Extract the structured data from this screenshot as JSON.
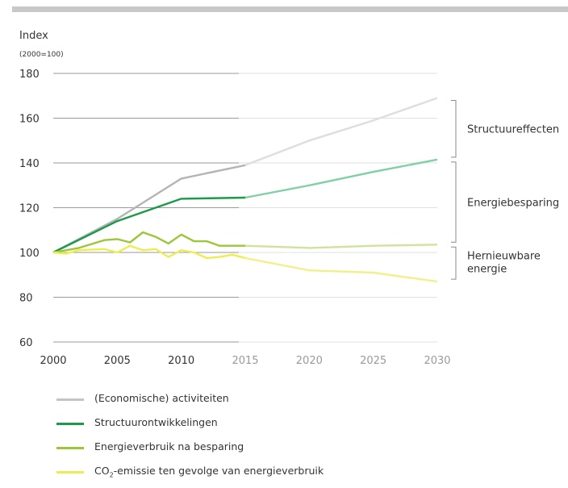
{
  "chart_data": {
    "type": "line",
    "ylabel": "Index",
    "ylabel_sub": "(2000=100)",
    "ylim": [
      60,
      180
    ],
    "yticks": [
      60,
      80,
      100,
      120,
      140,
      160,
      180
    ],
    "xlim": [
      2000,
      2030
    ],
    "xticks": [
      2000,
      2005,
      2010,
      2015,
      2020,
      2025,
      2030
    ],
    "grid": "horizontal",
    "series": [
      {
        "name": "(Economische) activiteiten",
        "color_hist": "#b4b4b4",
        "color_proj": "#dedede",
        "points": [
          [
            2000,
            100
          ],
          [
            2005,
            115
          ],
          [
            2010,
            133
          ],
          [
            2015,
            139
          ],
          [
            2020,
            150
          ],
          [
            2025,
            159
          ],
          [
            2030,
            169
          ]
        ]
      },
      {
        "name": "Structuurontwikkelingen",
        "color_hist": "#1b9a4a",
        "color_proj": "#7fd0a4",
        "points": [
          [
            2000,
            100
          ],
          [
            2005,
            114
          ],
          [
            2010,
            124
          ],
          [
            2015,
            124.5
          ],
          [
            2020,
            130
          ],
          [
            2025,
            136
          ],
          [
            2030,
            141.5
          ]
        ]
      },
      {
        "name": "Energieverbruik na besparing",
        "color_hist": "#9cc63a",
        "color_proj": "#cfe39a",
        "points": [
          [
            2000,
            100
          ],
          [
            2002,
            102
          ],
          [
            2004,
            105.5
          ],
          [
            2005,
            106
          ],
          [
            2006,
            104.5
          ],
          [
            2007,
            109
          ],
          [
            2008,
            107
          ],
          [
            2009,
            104
          ],
          [
            2010,
            108
          ],
          [
            2011,
            105
          ],
          [
            2012,
            105
          ],
          [
            2013,
            103
          ],
          [
            2014,
            103
          ],
          [
            2015,
            103
          ],
          [
            2020,
            102
          ],
          [
            2025,
            103
          ],
          [
            2030,
            103.5
          ]
        ]
      },
      {
        "name": "CO₂-emissie ten gevolge van energieverbruik",
        "name_parts": {
          "pre": "CO",
          "sub": "2",
          "post": "-emissie ten gevolge van energieverbruik"
        },
        "color_hist": "#eeed50",
        "color_proj": "#f3f08a",
        "points": [
          [
            2000,
            100
          ],
          [
            2001,
            99.5
          ],
          [
            2002,
            101
          ],
          [
            2004,
            101.5
          ],
          [
            2005,
            100
          ],
          [
            2006,
            103
          ],
          [
            2007,
            101
          ],
          [
            2008,
            101.5
          ],
          [
            2009,
            98
          ],
          [
            2010,
            101
          ],
          [
            2011,
            100
          ],
          [
            2012,
            97.5
          ],
          [
            2013,
            98
          ],
          [
            2014,
            99
          ],
          [
            2015,
            97.5
          ],
          [
            2020,
            92
          ],
          [
            2025,
            91
          ],
          [
            2030,
            87
          ]
        ]
      }
    ],
    "annotations": [
      {
        "label": "Structuureffecten",
        "from": 141.5,
        "to": 169
      },
      {
        "label": "Energiebesparing",
        "from": 103.5,
        "to": 141.5
      },
      {
        "label": "Hernieuwbare\nenergie",
        "from": 87,
        "to": 103.5
      }
    ]
  }
}
